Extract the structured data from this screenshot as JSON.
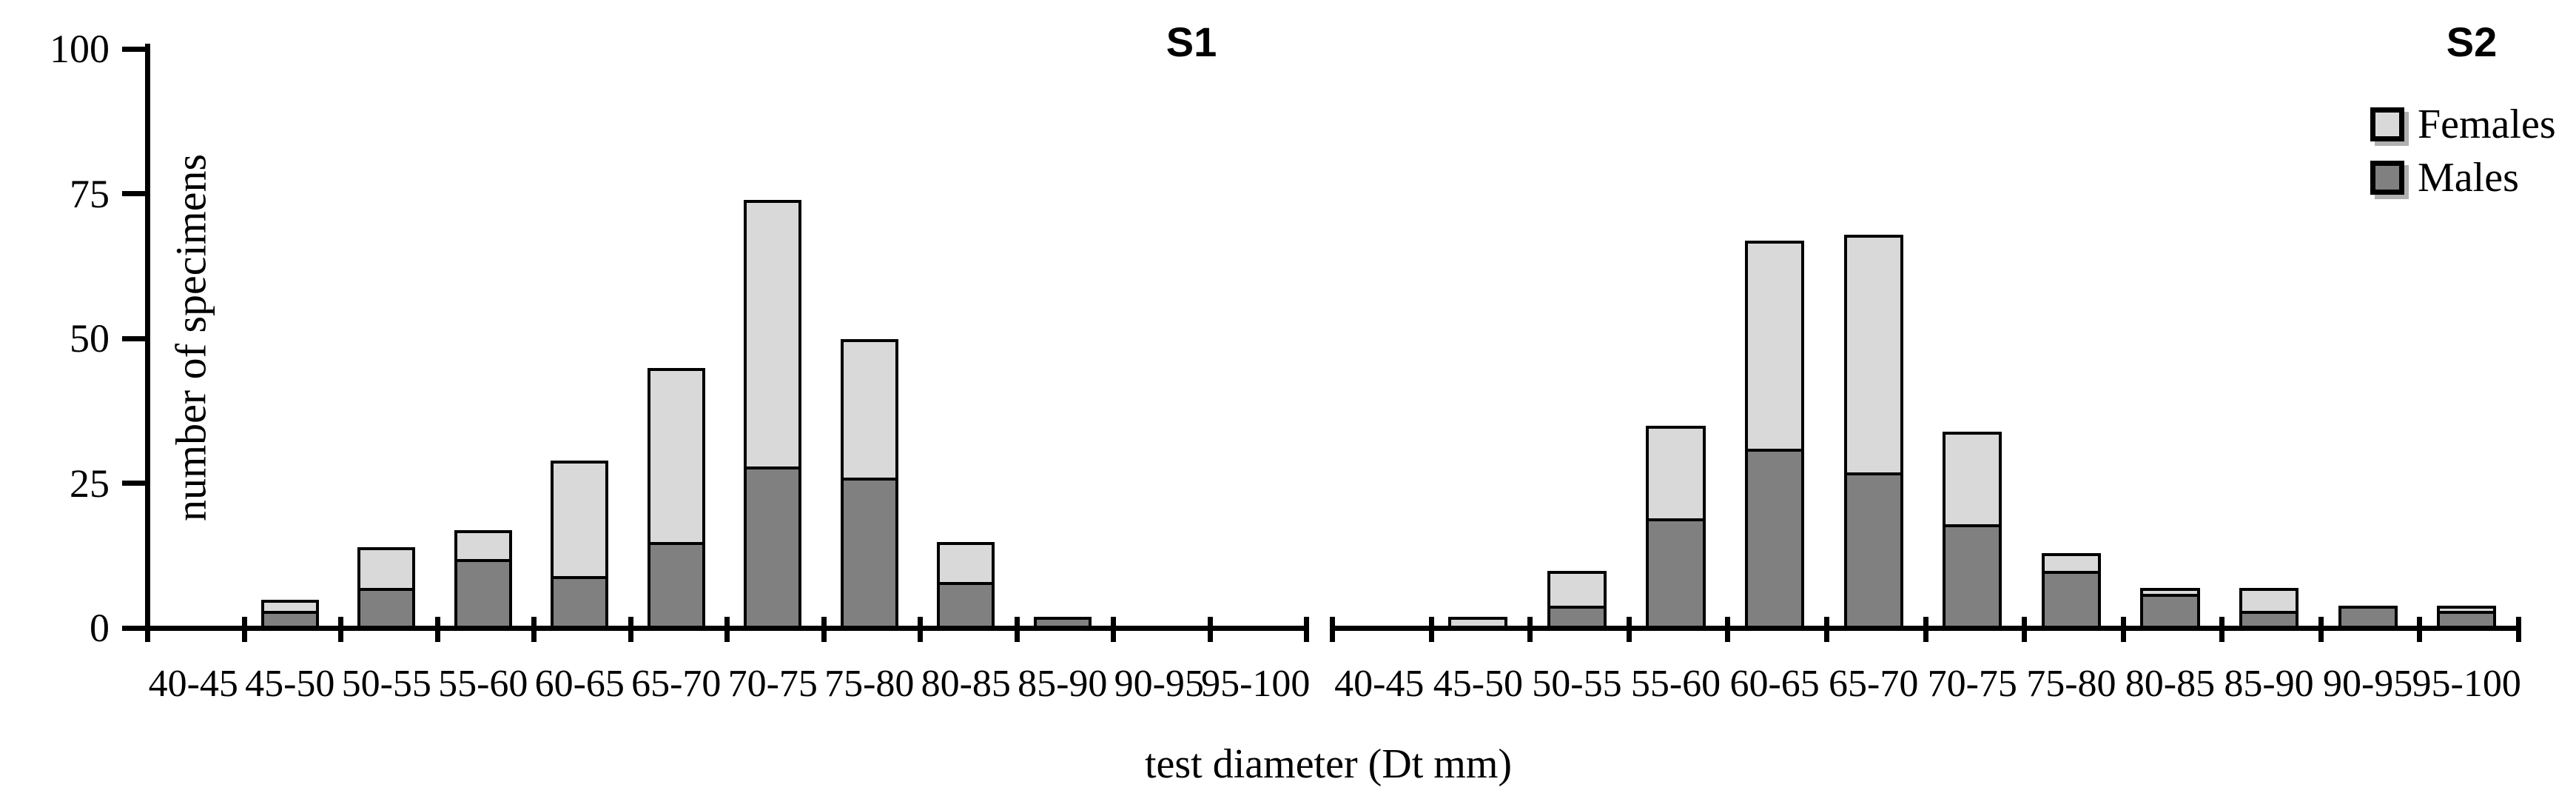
{
  "figure": {
    "xlabel": "test diameter (Dt mm)",
    "ylabel": "number of specimens",
    "legend": {
      "position": "top-right",
      "items": [
        {
          "label": "Females",
          "color": "#d9d9d9"
        },
        {
          "label": "Males",
          "color": "#808080"
        }
      ]
    }
  },
  "chart_data": [
    {
      "type": "bar",
      "stacked": true,
      "title": "S1",
      "xlabel": "test diameter (Dt mm)",
      "ylabel": "number of specimens",
      "ylim": [
        0,
        100
      ],
      "yticks": [
        0,
        25,
        50,
        75,
        100
      ],
      "grid": false,
      "categories": [
        "40-45",
        "45-50",
        "50-55",
        "55-60",
        "60-65",
        "65-70",
        "70-75",
        "75-80",
        "80-85",
        "85-90",
        "90-95",
        "95-100"
      ],
      "series": [
        {
          "name": "Males",
          "color": "#808080",
          "values": [
            0,
            2,
            6,
            11,
            8,
            14,
            27,
            25,
            7,
            1,
            0,
            0
          ]
        },
        {
          "name": "Females",
          "color": "#d9d9d9",
          "values": [
            0,
            2,
            7,
            5,
            20,
            30,
            46,
            24,
            7,
            0,
            0,
            0
          ]
        }
      ],
      "totals": [
        0,
        4,
        13,
        16,
        28,
        44,
        73,
        49,
        14,
        1,
        0,
        0
      ]
    },
    {
      "type": "bar",
      "stacked": true,
      "title": "S2",
      "xlabel": "test diameter (Dt mm)",
      "ylabel": "number of specimens",
      "ylim": [
        0,
        100
      ],
      "yticks": [
        0,
        25,
        50,
        75,
        100
      ],
      "grid": false,
      "categories": [
        "40-45",
        "45-50",
        "50-55",
        "55-60",
        "60-65",
        "65-70",
        "70-75",
        "75-80",
        "80-85",
        "85-90",
        "90-95",
        "95-100"
      ],
      "series": [
        {
          "name": "Males",
          "color": "#808080",
          "values": [
            0,
            0,
            3,
            18,
            30,
            26,
            17,
            9,
            5,
            2,
            3,
            2
          ]
        },
        {
          "name": "Females",
          "color": "#d9d9d9",
          "values": [
            0,
            1,
            6,
            16,
            36,
            41,
            16,
            3,
            1,
            4,
            0,
            1
          ]
        }
      ],
      "totals": [
        0,
        1,
        9,
        34,
        66,
        67,
        33,
        12,
        6,
        6,
        3,
        3
      ]
    }
  ]
}
